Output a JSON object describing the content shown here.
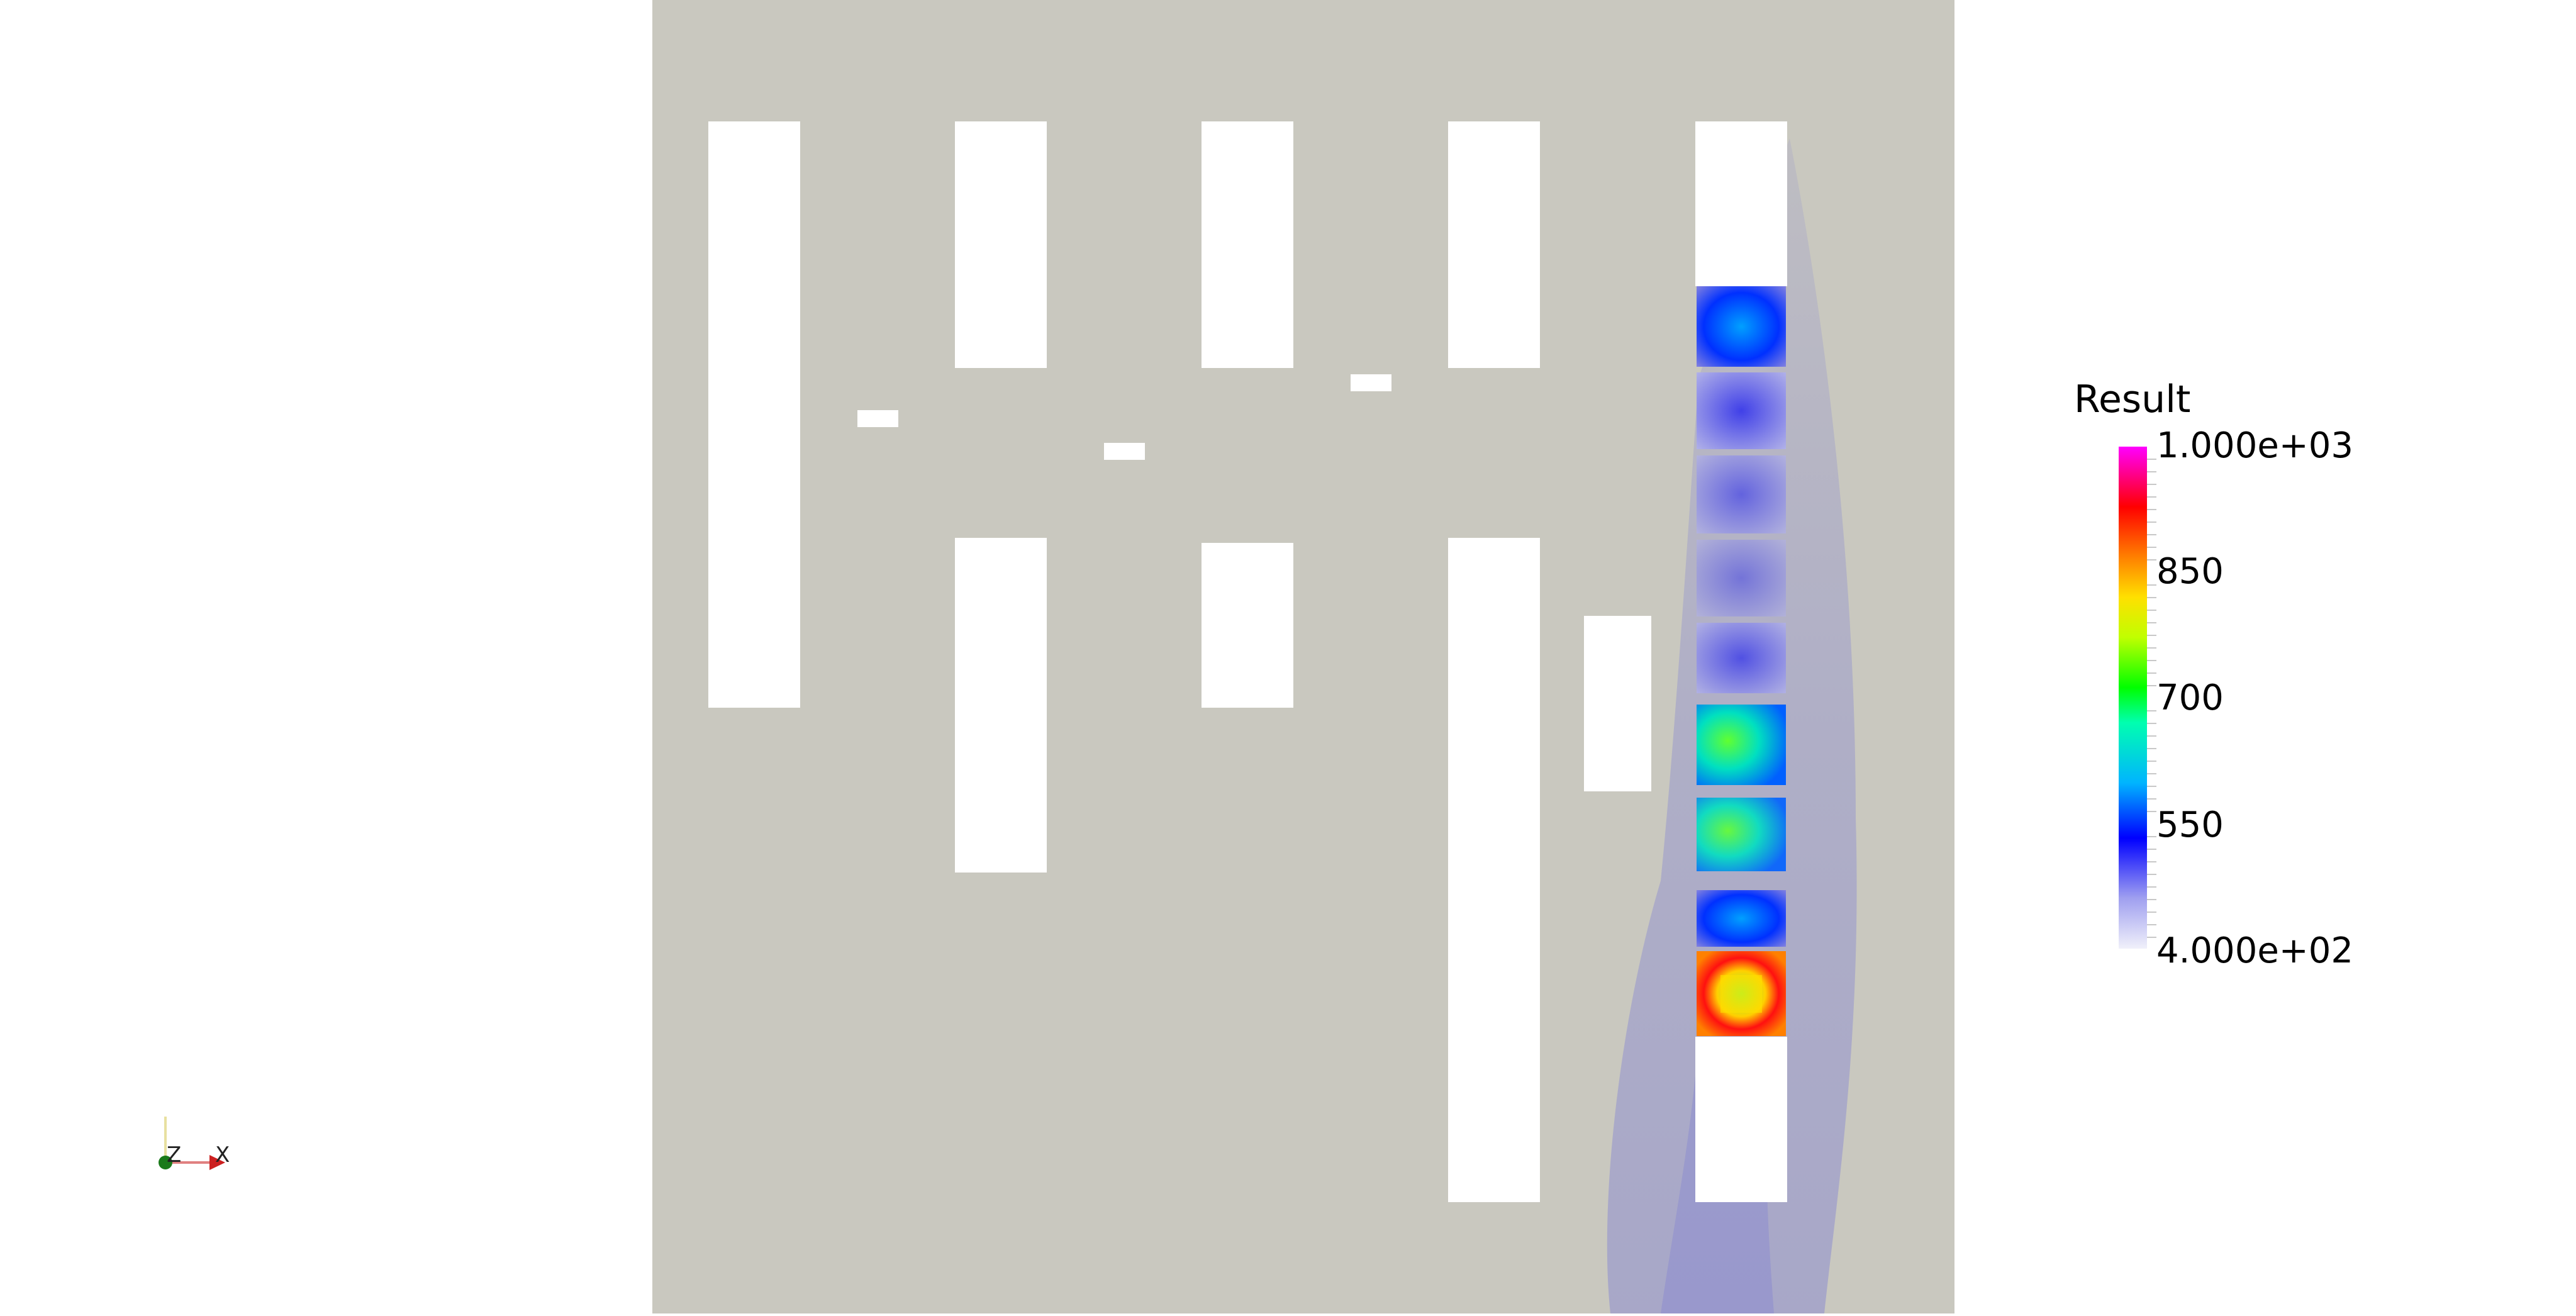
{
  "colorbar": {
    "title": "Result",
    "max_label": "1.000e+03",
    "min_label": "4.000e+02",
    "ticks": [
      "850",
      "700",
      "550"
    ],
    "range": [
      400,
      1000
    ],
    "colors": [
      "#f0f0fa",
      "#0000ff",
      "#00d0ff",
      "#00ff00",
      "#ffff00",
      "#ff8000",
      "#ff0000",
      "#ff00ff"
    ]
  },
  "axes": {
    "vertical_label": "Z",
    "horizontal_label": "X"
  },
  "scene": {
    "background_color": "#ffffff",
    "domain_color": "#c9c8bf",
    "obstacle_color": "#ffffff",
    "plume_color": "#7f7fd4",
    "cell_values": [
      520,
      500,
      470,
      455,
      490,
      620,
      610,
      560,
      880
    ]
  }
}
